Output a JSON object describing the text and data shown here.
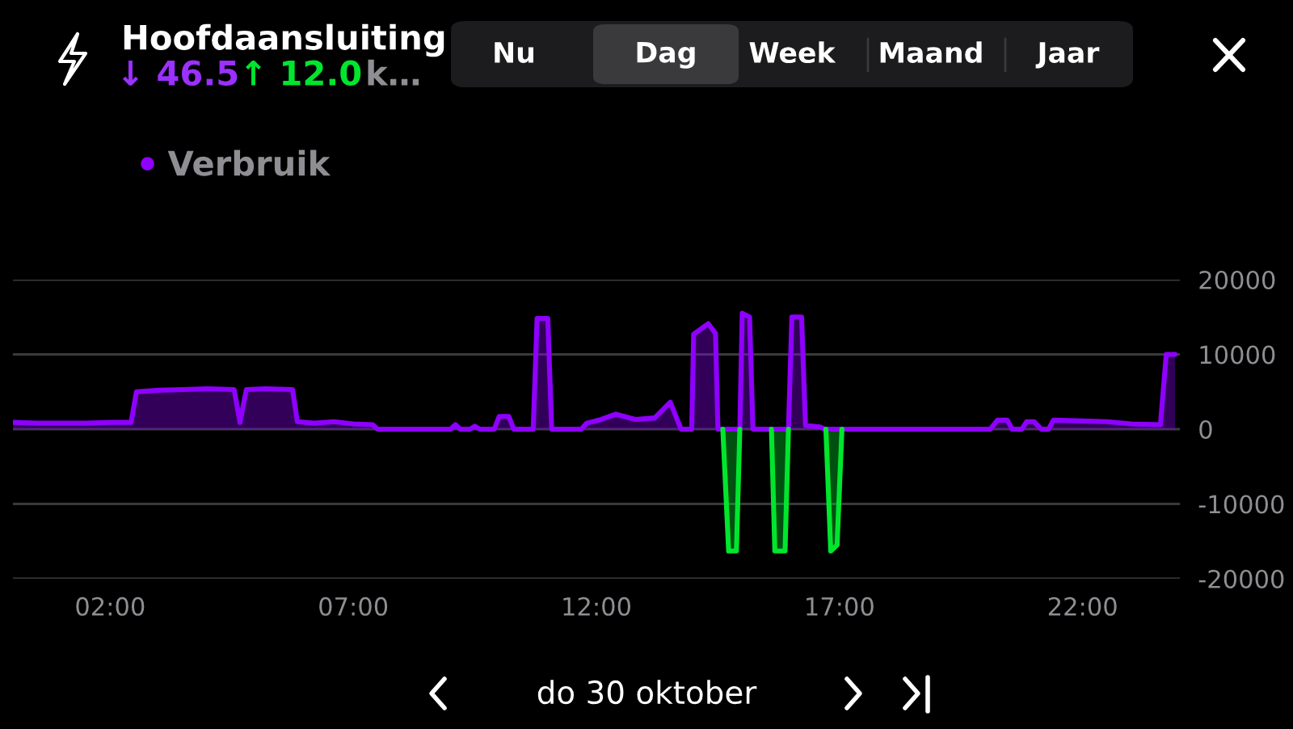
{
  "chart_data": {
    "type": "area",
    "title": "Hoofdaansluiting",
    "annotations": [
      "↓ 46.5",
      "↑ 12.0",
      "k…",
      "Nu",
      "Dag",
      "Week",
      "Maand",
      "Jaar",
      "do 30 oktober"
    ],
    "xlim": [
      0,
      24
    ],
    "xticks": [
      {
        "value": 2,
        "label": "02:00"
      },
      {
        "value": 7,
        "label": "07:00"
      },
      {
        "value": 12,
        "label": "12:00"
      },
      {
        "value": 17,
        "label": "17:00"
      },
      {
        "value": 22,
        "label": "22:00"
      }
    ],
    "ylim": [
      -20000,
      20000
    ],
    "yticks": [
      -20000,
      -10000,
      0,
      10000,
      20000
    ],
    "grid": "y",
    "legend": "top left",
    "marker": "none",
    "line_style": "solid",
    "series": [
      {
        "name": "Verbruik",
        "color": "#8f00ff",
        "x": [
          0.0,
          0.5,
          1.0,
          1.5,
          2.0,
          2.43,
          2.54,
          3.0,
          3.5,
          4.0,
          4.55,
          4.67,
          4.8,
          5.2,
          5.75,
          5.85,
          6.2,
          6.6,
          7.0,
          7.4,
          7.5,
          9.0,
          9.1,
          9.2,
          9.4,
          9.5,
          9.6,
          9.9,
          10.0,
          10.2,
          10.3,
          10.7,
          10.78,
          11.0,
          11.08,
          11.69,
          11.8,
          12.1,
          12.4,
          12.8,
          13.2,
          13.52,
          13.74,
          13.96,
          14.0,
          14.3,
          14.45,
          14.5,
          14.95,
          15.0,
          15.15,
          15.22,
          15.95,
          16.02,
          16.22,
          16.3,
          16.6,
          16.7,
          20.1,
          20.25,
          20.45,
          20.55,
          20.75,
          20.85,
          21.0,
          21.15,
          21.3,
          21.4,
          22.0,
          22.5,
          23.0,
          23.6,
          23.72,
          23.9
        ],
        "values": [
          900,
          800,
          800,
          800,
          900,
          900,
          5000,
          5200,
          5300,
          5400,
          5300,
          900,
          5300,
          5400,
          5300,
          1000,
          800,
          1000,
          700,
          600,
          0,
          0,
          600,
          0,
          0,
          400,
          0,
          0,
          1700,
          1700,
          0,
          0,
          14800,
          14800,
          0,
          0,
          800,
          1300,
          2000,
          1300,
          1500,
          3600,
          0,
          0,
          12700,
          14100,
          12800,
          0,
          0,
          15500,
          15000,
          0,
          0,
          15000,
          15000,
          500,
          300,
          0,
          0,
          1200,
          1200,
          0,
          0,
          1000,
          1000,
          0,
          0,
          1200,
          1100,
          1000,
          700,
          600,
          10000,
          10000
        ]
      },
      {
        "color": "#00e62e",
        "x": [
          14.6,
          14.72,
          14.88,
          14.95,
          15.3,
          15.6,
          15.67,
          15.88,
          15.95,
          16.4,
          16.72,
          16.82,
          16.95,
          17.05
        ],
        "values": [
          0,
          -16300,
          -16300,
          0,
          null,
          0,
          -16300,
          -16300,
          0,
          null,
          0,
          -16300,
          -15500,
          0
        ]
      }
    ]
  }
}
